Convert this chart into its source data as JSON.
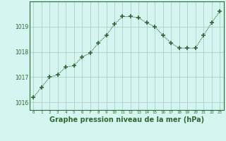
{
  "x": [
    0,
    1,
    2,
    3,
    4,
    5,
    6,
    7,
    8,
    9,
    10,
    11,
    12,
    13,
    14,
    15,
    16,
    17,
    18,
    19,
    20,
    21,
    22,
    23
  ],
  "y": [
    1016.2,
    1016.6,
    1017.0,
    1017.1,
    1017.4,
    1017.45,
    1017.8,
    1017.95,
    1018.35,
    1018.65,
    1019.1,
    1019.4,
    1019.4,
    1019.35,
    1019.15,
    1019.0,
    1018.65,
    1018.35,
    1018.15,
    1018.15,
    1018.15,
    1018.65,
    1019.15,
    1019.6
  ],
  "line_color": "#2d6a2d",
  "marker_color": "#2d6a2d",
  "bg_color": "#d4f5f0",
  "grid_color": "#a8cfc8",
  "border_color": "#2d6a2d",
  "xlabel": "Graphe pression niveau de la mer (hPa)",
  "xlabel_color": "#2d6a2d",
  "xlabel_fontsize": 7.0,
  "ytick_labels": [
    "1016",
    "1017",
    "1018",
    "1019"
  ],
  "ytick_values": [
    1016,
    1017,
    1018,
    1019
  ],
  "xtick_values": [
    0,
    1,
    2,
    3,
    4,
    5,
    6,
    7,
    8,
    9,
    10,
    11,
    12,
    13,
    14,
    15,
    16,
    17,
    18,
    19,
    20,
    21,
    22,
    23
  ],
  "ylim": [
    1015.7,
    1020.0
  ],
  "xlim": [
    -0.5,
    23.5
  ]
}
